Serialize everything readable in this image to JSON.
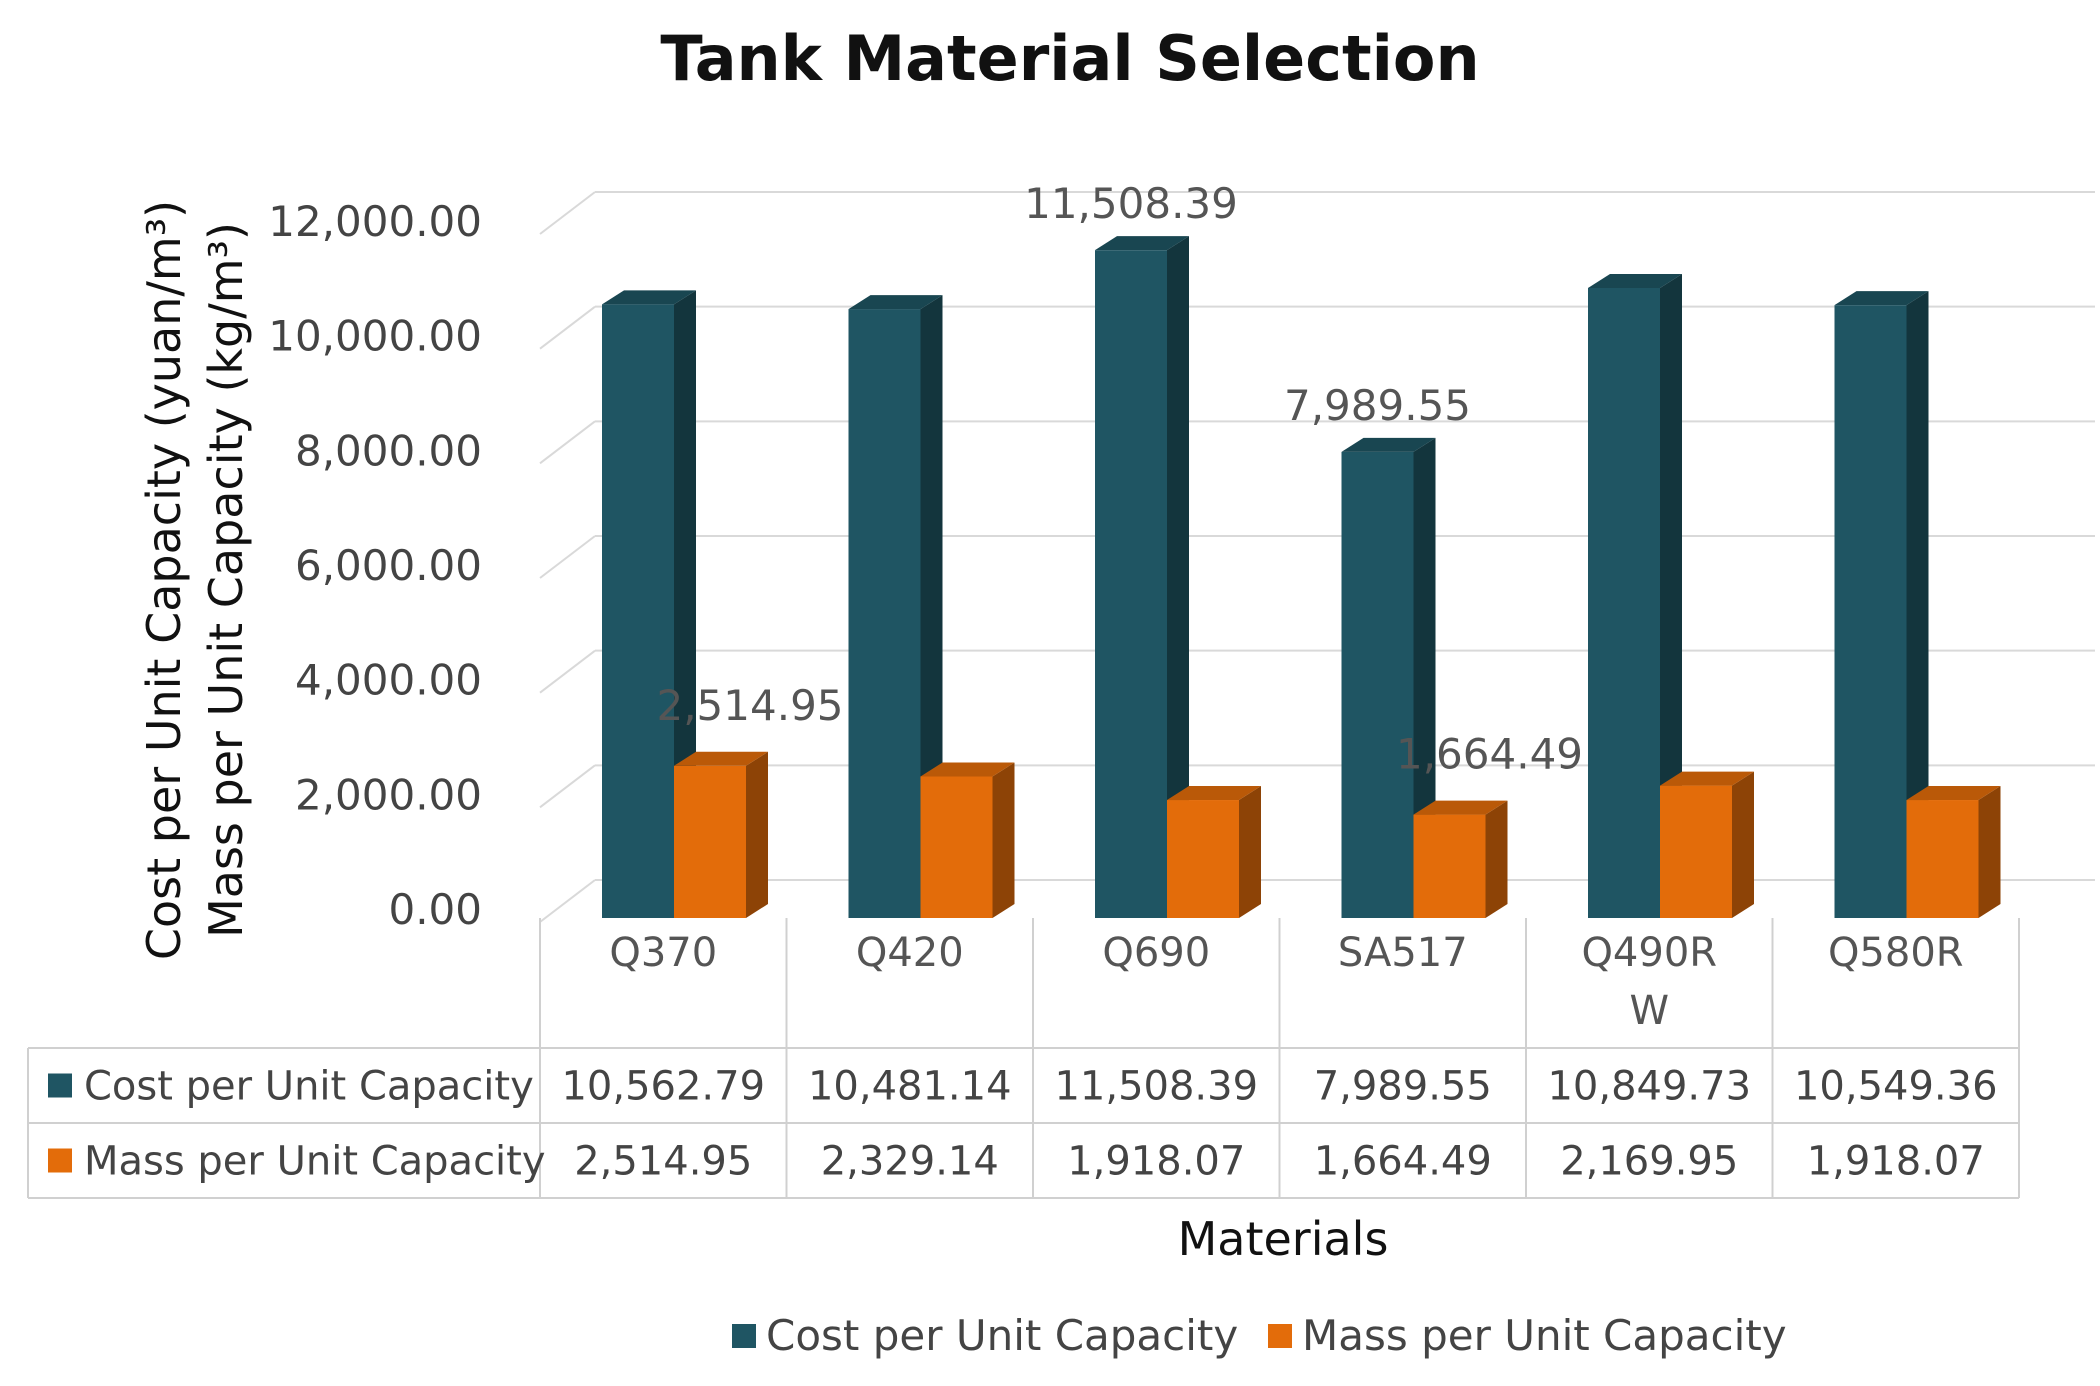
{
  "chart_data": {
    "type": "bar",
    "title": "Tank Material Selection",
    "ylabel_lines": [
      "Cost per Unit Capacity  (yuan/m³)",
      "Mass per Unit Capacity  (kg/m³)"
    ],
    "xlabel": "Materials",
    "categories": [
      "Q370",
      "Q420",
      "Q690",
      "SA517",
      "Q490RW",
      "Q580R"
    ],
    "category_display": [
      [
        "Q370"
      ],
      [
        "Q420"
      ],
      [
        "Q690"
      ],
      [
        "SA517"
      ],
      [
        "Q490R",
        "W"
      ],
      [
        "Q580R"
      ]
    ],
    "ylim": [
      0,
      12000
    ],
    "yticks": [
      0,
      2000,
      4000,
      6000,
      8000,
      10000,
      12000
    ],
    "ytick_labels": [
      "0.00",
      "2,000.00",
      "4,000.00",
      "6,000.00",
      "8,000.00",
      "10,000.00",
      "12,000.00"
    ],
    "grid": true,
    "legend_position": "bottom",
    "series": [
      {
        "name": "Cost per Unit Capacity",
        "color": "#1f5563",
        "values": [
          10562.79,
          10481.14,
          11508.39,
          7989.55,
          10849.73,
          10549.36
        ],
        "table_values": [
          "10,562.79",
          "10,481.14",
          "11,508.39",
          "7,989.55",
          "10,849.73",
          "10,549.36"
        ]
      },
      {
        "name": "Mass per Unit Capacity",
        "color": "#e36c0a",
        "values": [
          2514.95,
          2329.14,
          1918.07,
          1664.49,
          2169.95,
          1918.07
        ],
        "table_values": [
          "2,514.95",
          "2,329.14",
          "1,918.07",
          "1,664.49",
          "2,169.95",
          "1,918.07"
        ]
      }
    ],
    "data_labels": [
      {
        "series": 0,
        "index": 2,
        "text": "11,508.39"
      },
      {
        "series": 0,
        "index": 3,
        "text": "7,989.55"
      },
      {
        "series": 1,
        "index": 0,
        "text": "2,514.95"
      },
      {
        "series": 1,
        "index": 3,
        "text": "1,664.49"
      }
    ]
  }
}
